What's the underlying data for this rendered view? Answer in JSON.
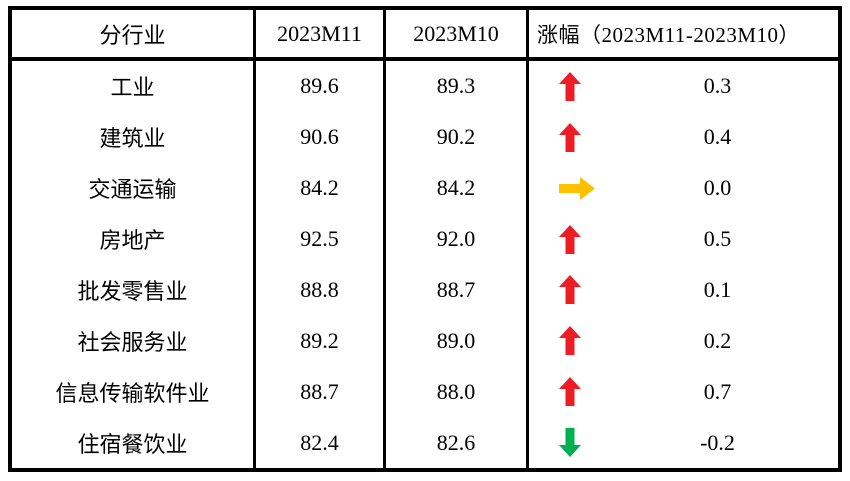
{
  "table": {
    "headers": [
      "分行业",
      "2023M11",
      "2023M10",
      "涨幅（2023M11-2023M10）"
    ],
    "rows": [
      {
        "industry": "工业",
        "m11": "89.6",
        "m10": "89.3",
        "arrow": "up",
        "change": "0.3"
      },
      {
        "industry": "建筑业",
        "m11": "90.6",
        "m10": "90.2",
        "arrow": "up",
        "change": "0.4"
      },
      {
        "industry": "交通运输",
        "m11": "84.2",
        "m10": "84.2",
        "arrow": "flat",
        "change": "0.0"
      },
      {
        "industry": "房地产",
        "m11": "92.5",
        "m10": "92.0",
        "arrow": "up",
        "change": "0.5"
      },
      {
        "industry": "批发零售业",
        "m11": "88.8",
        "m10": "88.7",
        "arrow": "up",
        "change": "0.1"
      },
      {
        "industry": "社会服务业",
        "m11": "89.2",
        "m10": "89.0",
        "arrow": "up",
        "change": "0.2"
      },
      {
        "industry": "信息传输软件业",
        "m11": "88.7",
        "m10": "88.0",
        "arrow": "up",
        "change": "0.7"
      },
      {
        "industry": "住宿餐饮业",
        "m11": "82.4",
        "m10": "82.6",
        "arrow": "down",
        "change": "-0.2"
      }
    ]
  },
  "colors": {
    "arrow_up": "#EE1C25",
    "arrow_flat": "#FFC000",
    "arrow_down": "#00B050",
    "border": "#000000",
    "background": "#FFFFFF"
  },
  "chart_data": {
    "type": "table",
    "columns": [
      "分行业",
      "2023M11",
      "2023M10",
      "涨幅（2023M11-2023M10）"
    ],
    "rows": [
      [
        "工业",
        89.6,
        89.3,
        0.3
      ],
      [
        "建筑业",
        90.6,
        90.2,
        0.4
      ],
      [
        "交通运输",
        84.2,
        84.2,
        0.0
      ],
      [
        "房地产",
        92.5,
        92.0,
        0.5
      ],
      [
        "批发零售业",
        88.8,
        88.7,
        0.1
      ],
      [
        "社会服务业",
        89.2,
        89.0,
        0.2
      ],
      [
        "信息传输软件业",
        88.7,
        88.0,
        0.7
      ],
      [
        "住宿餐饮业",
        82.4,
        82.6,
        -0.2
      ]
    ],
    "notes": "涨幅列以箭头图标表示方向：红色向上箭头=上涨，黄色向右箭头=持平，绿色向下箭头=下跌"
  }
}
